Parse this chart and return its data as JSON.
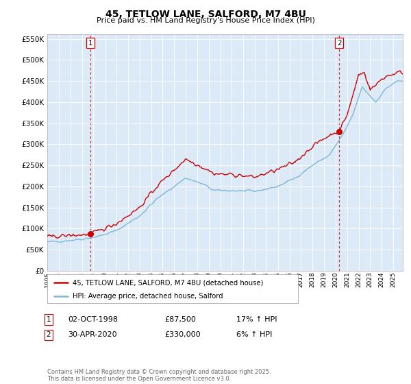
{
  "title": "45, TETLOW LANE, SALFORD, M7 4BU",
  "subtitle": "Price paid vs. HM Land Registry's House Price Index (HPI)",
  "fig_bg_color": "#ffffff",
  "plot_bg_color": "#dce9f7",
  "red_line_color": "#cc0000",
  "blue_line_color": "#7eb8d4",
  "dashed_line_color": "#cc0000",
  "marker_color": "#cc0000",
  "annotation1_date": "02-OCT-1998",
  "annotation1_price": "£87,500",
  "annotation1_hpi": "17% ↑ HPI",
  "annotation2_date": "30-APR-2020",
  "annotation2_price": "£330,000",
  "annotation2_hpi": "6% ↑ HPI",
  "legend_entry1": "45, TETLOW LANE, SALFORD, M7 4BU (detached house)",
  "legend_entry2": "HPI: Average price, detached house, Salford",
  "footer": "Contains HM Land Registry data © Crown copyright and database right 2025.\nThis data is licensed under the Open Government Licence v3.0.",
  "ylim": [
    0,
    560000
  ],
  "yticks": [
    0,
    50000,
    100000,
    150000,
    200000,
    250000,
    300000,
    350000,
    400000,
    450000,
    500000,
    550000
  ],
  "ytick_labels": [
    "£0",
    "£50K",
    "£100K",
    "£150K",
    "£200K",
    "£250K",
    "£300K",
    "£350K",
    "£400K",
    "£450K",
    "£500K",
    "£550K"
  ],
  "marker1_x": 1998.75,
  "marker1_y": 87500,
  "marker2_x": 2020.33,
  "marker2_y": 330000,
  "vline1_x": 1998.75,
  "vline2_x": 2020.33,
  "xmin": 1995.0,
  "xmax": 2025.83
}
